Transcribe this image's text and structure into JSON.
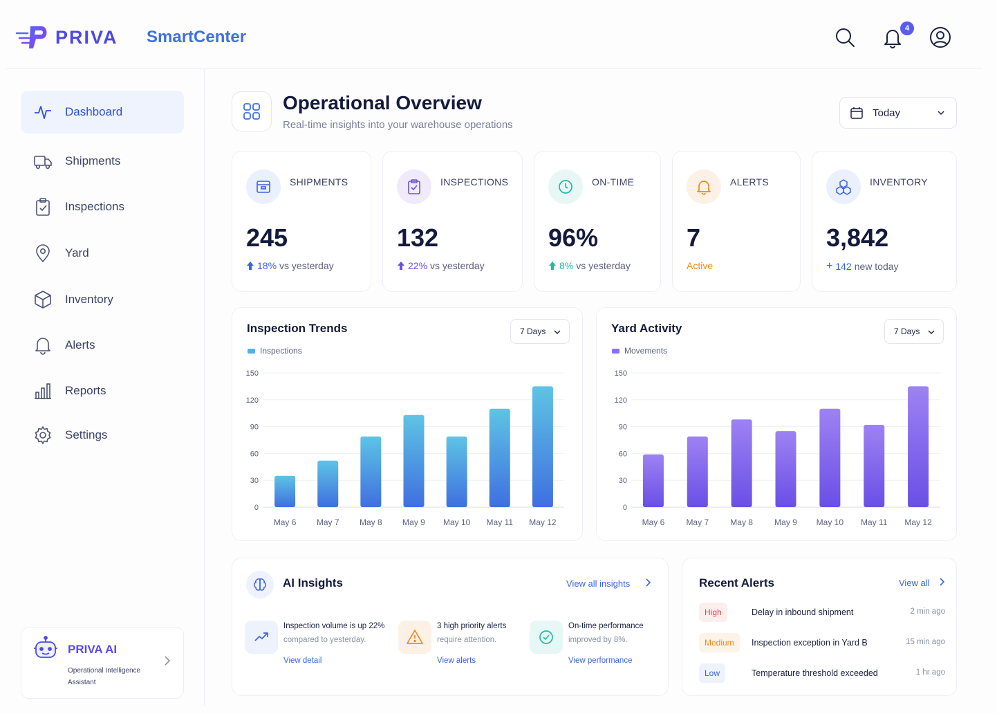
{
  "header": {
    "brand": "PRIVA",
    "app_name": "SmartCenter",
    "notification_count": "4"
  },
  "sidebar": {
    "items": [
      {
        "label": "Dashboard",
        "icon": "activity-icon",
        "active": true
      },
      {
        "label": "Shipments",
        "icon": "truck-icon"
      },
      {
        "label": "Inspections",
        "icon": "clipboard-check-icon"
      },
      {
        "label": "Yard",
        "icon": "map-pin-icon"
      },
      {
        "label": "Inventory",
        "icon": "box-icon"
      },
      {
        "label": "Alerts",
        "icon": "bell-icon"
      },
      {
        "label": "Reports",
        "icon": "bar-chart-icon"
      },
      {
        "label": "Settings",
        "icon": "gear-icon"
      }
    ],
    "assistant": {
      "title": "PRIVA AI",
      "subtitle": "Operational Intelligence Assistant"
    }
  },
  "page": {
    "title": "Operational Overview",
    "subtitle": "Real-time insights into your warehouse operations",
    "date_filter": "Today"
  },
  "kpis": [
    {
      "label": "SHIPMENTS",
      "value": "245",
      "delta": "18%",
      "delta_text": "vs yesterday",
      "color": "#3b63d8"
    },
    {
      "label": "INSPECTIONS",
      "value": "132",
      "delta": "22%",
      "delta_text": "vs yesterday",
      "color": "#6b4fe0"
    },
    {
      "label": "ON-TIME",
      "value": "96%",
      "delta": "8%",
      "delta_text": "vs yesterday",
      "color": "#2bb6a4"
    },
    {
      "label": "ALERTS",
      "value": "7",
      "delta": "Active",
      "delta_text": "",
      "color": "#f08a1c"
    },
    {
      "label": "INVENTORY",
      "value": "3,842",
      "delta": "142",
      "delta_text": "new today",
      "color": "#3b63d8"
    }
  ],
  "inspection_trends": {
    "title": "Inspection Trends",
    "range": "7 Days"
  },
  "yard_activity": {
    "title": "Yard Activity",
    "range": "7 Days"
  },
  "chart_data": [
    {
      "type": "bar",
      "title": "Inspection Trends",
      "categories": [
        "May 6",
        "May 7",
        "May 8",
        "May 9",
        "May 10",
        "May 11",
        "May 12"
      ],
      "series": [
        {
          "name": "Inspections",
          "values": [
            35,
            52,
            79,
            103,
            79,
            110,
            135
          ]
        }
      ],
      "yticks": [
        0,
        30,
        60,
        90,
        120,
        150
      ],
      "ylim": [
        0,
        150
      ],
      "grid": true,
      "colors": [
        "#5ec4e4",
        "#3f6fe0"
      ]
    },
    {
      "type": "bar",
      "title": "Yard Activity",
      "categories": [
        "May 6",
        "May 7",
        "May 8",
        "May 9",
        "May 10",
        "May 11",
        "May 12"
      ],
      "series": [
        {
          "name": "Movements",
          "values": [
            59,
            79,
            98,
            85,
            110,
            92,
            135
          ]
        }
      ],
      "yticks": [
        0,
        30,
        60,
        90,
        120,
        150
      ],
      "ylim": [
        0,
        150
      ],
      "grid": true,
      "colors": [
        "#9d82f3",
        "#6a4fe6"
      ]
    }
  ],
  "insights": {
    "title": "AI Insights",
    "view_all": "View all insights",
    "items": [
      {
        "title": "Inspection volume is up 22%",
        "subtitle": "compared to yesterday.",
        "link": "View detail"
      },
      {
        "title": "3 high priority alerts",
        "subtitle": "require attention.",
        "link": "View alerts"
      },
      {
        "title": "On-time performance",
        "subtitle": "improved by 8%.",
        "link": "View performance"
      }
    ]
  },
  "alerts": {
    "title": "Recent Alerts",
    "view_all": "View all",
    "items": [
      {
        "level": "High",
        "text": "Delay in inbound shipment",
        "time": "2 min ago"
      },
      {
        "level": "Medium",
        "text": "Inspection exception in Yard B",
        "time": "15 min ago"
      },
      {
        "level": "Low",
        "text": "Temperature threshold exceeded",
        "time": "1 hr ago"
      }
    ]
  }
}
